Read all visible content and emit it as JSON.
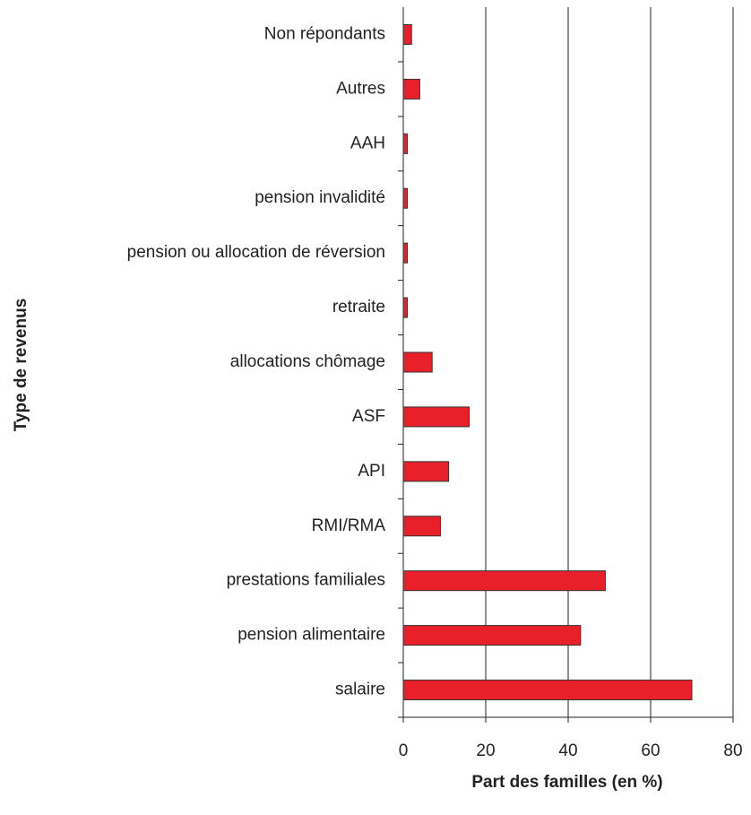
{
  "chart_data": {
    "type": "bar",
    "orientation": "horizontal",
    "xlabel": "Part des familles (en %)",
    "ylabel": "Type de revenus",
    "categories": [
      "salaire",
      "pension alimentaire",
      "prestations familiales",
      "RMI/RMA",
      "API",
      "ASF",
      "allocations chômage",
      "retraite",
      "pension ou allocation de réversion",
      "pension invalidité",
      "AAH",
      "Autres",
      "Non répondants"
    ],
    "values": [
      70,
      43,
      49,
      9,
      11,
      16,
      7,
      1,
      1,
      1,
      1,
      4,
      2
    ],
    "color": "#e8202a",
    "xlim": [
      0,
      80
    ],
    "xticks": [
      0,
      20,
      40,
      60,
      80
    ],
    "grid": true
  }
}
